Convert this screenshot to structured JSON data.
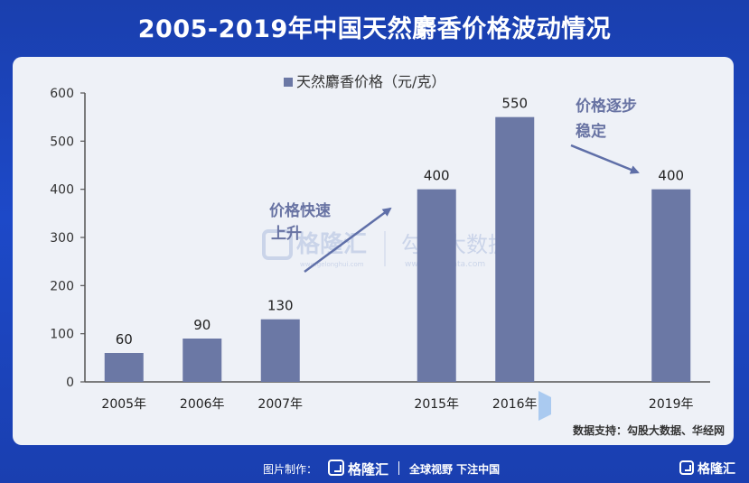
{
  "page": {
    "title": "2005-2019年中国天然麝香价格波动情况",
    "source": "数据支持：勾股大数据、华经网"
  },
  "colors": {
    "bar": "#6b78a5",
    "arrow": "#5f6fa8",
    "annotation": "#6873a3"
  },
  "watermark": {
    "brand": "格隆汇",
    "brand_url": "www.gelonghui.com",
    "partner": "勾股大数据",
    "partner_url": "www.gogudata.com"
  },
  "annotations": [
    {
      "lines": [
        "价格快速",
        "上升"
      ]
    },
    {
      "lines": [
        "价格逐步",
        "稳定"
      ]
    }
  ],
  "footer": {
    "label": "图片制作：",
    "brand": "格隆汇",
    "slogan": "全球视野 下注中国",
    "brand_right": "格隆汇"
  },
  "chart_data": {
    "type": "bar",
    "categories": [
      "2005年",
      "2006年",
      "2007年",
      "2015年",
      "2016年",
      "2019年"
    ],
    "series": [
      {
        "name": "天然麝香价格（元/克）",
        "values": [
          60,
          90,
          130,
          400,
          550,
          400
        ]
      }
    ],
    "data_labels": [
      "60",
      "90",
      "130",
      "400",
      "550",
      "400"
    ],
    "y_ticks": [
      "0",
      "100",
      "200",
      "300",
      "400",
      "500",
      "600"
    ],
    "ylim": [
      0,
      600
    ],
    "legend": "top-center",
    "grid": false,
    "title": "",
    "xlabel": "",
    "ylabel": ""
  }
}
